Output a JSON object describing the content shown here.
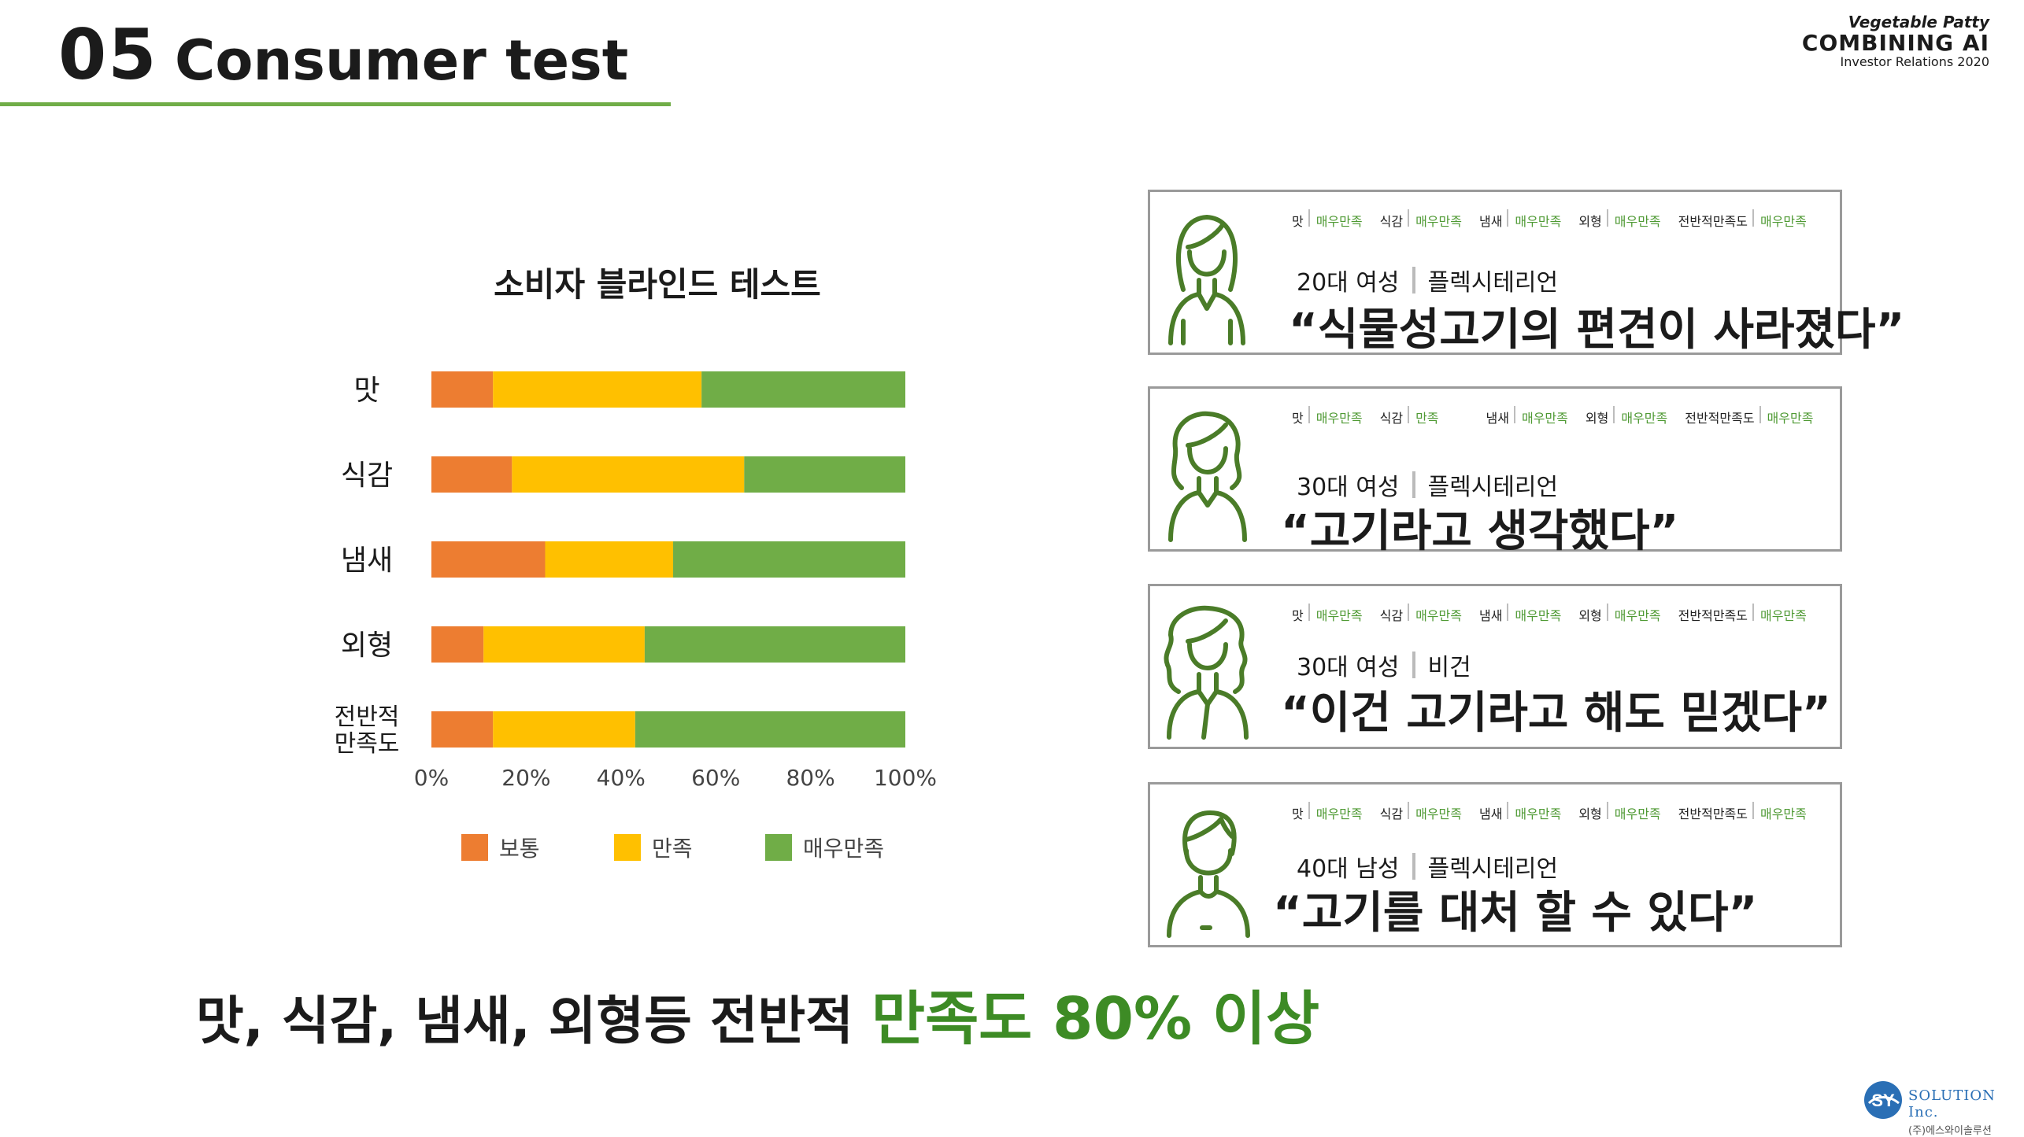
{
  "header": {
    "section_number": "05",
    "section_title": "Consumer test"
  },
  "brand": {
    "line1": "Vegetable Patty",
    "line2": "COMBINING AI",
    "line3": "Investor Relations 2020"
  },
  "chart_data": {
    "type": "bar",
    "orientation": "horizontal",
    "stacked": true,
    "title": "소비자 블라인드 테스트",
    "categories": [
      "맛",
      "식감",
      "냄새",
      "외형",
      "전반적\n만족도"
    ],
    "series": [
      {
        "name": "보통",
        "color": "#ed7d31",
        "values": [
          13,
          17,
          24,
          11,
          13
        ]
      },
      {
        "name": "만족",
        "color": "#ffc000",
        "values": [
          44,
          49,
          27,
          34,
          30
        ]
      },
      {
        "name": "매우만족",
        "color": "#70ad47",
        "values": [
          43,
          34,
          49,
          55,
          57
        ]
      }
    ],
    "x_tick_labels": [
      "0%",
      "20%",
      "40%",
      "60%",
      "80%",
      "100%"
    ],
    "xlim": [
      0,
      100
    ],
    "grid": false,
    "legend": "bottom"
  },
  "rating_labels": {
    "taste": "맛",
    "texture": "식감",
    "smell": "냄새",
    "look": "외형",
    "overall": "전반적만족도"
  },
  "reviews": [
    {
      "r_taste": "매우만족",
      "r_texture": "매우만족",
      "r_smell": "매우만족",
      "r_look": "매우만족",
      "r_overall": "매우만족",
      "profile": "20대 여성",
      "diet": "플렉시테리언",
      "quote": "“식물성고기의 편견이 사라졌다”"
    },
    {
      "r_taste": "매우만족",
      "r_texture": "만족",
      "r_smell": "매우만족",
      "r_look": "매우만족",
      "r_overall": "매우만족",
      "profile": "30대 여성",
      "diet": "플렉시테리언",
      "quote": "“고기라고 생각했다”"
    },
    {
      "r_taste": "매우만족",
      "r_texture": "매우만족",
      "r_smell": "매우만족",
      "r_look": "매우만족",
      "r_overall": "매우만족",
      "profile": "30대 여성",
      "diet": "비건",
      "quote": "“이건 고기라고 해도 믿겠다”"
    },
    {
      "r_taste": "매우만족",
      "r_texture": "매우만족",
      "r_smell": "매우만족",
      "r_look": "매우만족",
      "r_overall": "매우만족",
      "profile": "40대 남성",
      "diet": "플렉시테리언",
      "quote": "“고기를 대처 할 수 있다”"
    }
  ],
  "summary": {
    "text": "맛, 식감, 냄새, 외형등 전반적 ",
    "highlight": "만족도 80% 이상"
  },
  "footer_logo": {
    "mark": "SY",
    "name": "SOLUTION Inc.",
    "korean": "(주)에스와이솔루션"
  }
}
